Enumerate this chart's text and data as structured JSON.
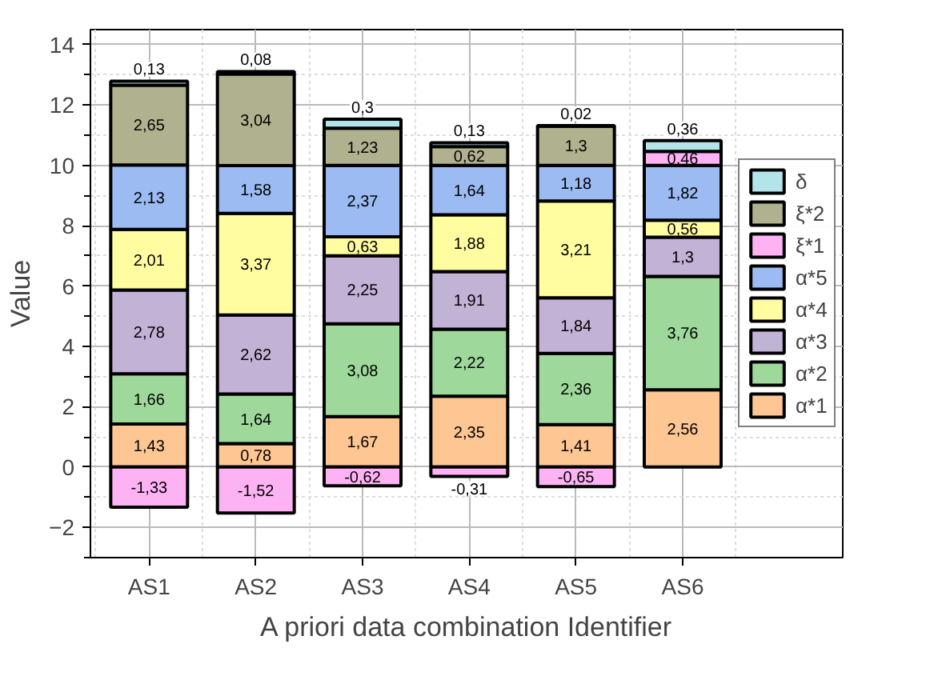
{
  "chart_data": {
    "type": "bar",
    "stacked": true,
    "xlabel": "A priori data combination Identifier",
    "ylabel": "Value",
    "categories": [
      "AS1",
      "AS2",
      "AS3",
      "AS4",
      "AS5",
      "AS6"
    ],
    "ylim": [
      -3,
      14.5
    ],
    "yticks": [
      -2,
      0,
      2,
      4,
      6,
      8,
      10,
      12,
      14
    ],
    "grid": true,
    "legend": "right",
    "series": [
      {
        "name": "α*1",
        "color": "#fdc693",
        "values": [
          1.43,
          0.78,
          1.67,
          2.35,
          1.41,
          2.56
        ],
        "value_labels": [
          "1,43",
          "0,78",
          "1,67",
          "2,35",
          "1,41",
          "2,56"
        ]
      },
      {
        "name": "α*2",
        "color": "#9fd89b",
        "values": [
          1.66,
          1.64,
          3.08,
          2.22,
          2.36,
          3.76
        ],
        "value_labels": [
          "1,66",
          "1,64",
          "3,08",
          "2,22",
          "2,36",
          "3,76"
        ]
      },
      {
        "name": "α*3",
        "color": "#c2b2d6",
        "values": [
          2.78,
          2.62,
          2.25,
          1.91,
          1.84,
          1.3
        ],
        "value_labels": [
          "2,78",
          "2,62",
          "2,25",
          "1,91",
          "1,84",
          "1,3"
        ]
      },
      {
        "name": "α*4",
        "color": "#fffd9f",
        "values": [
          2.01,
          3.37,
          0.63,
          1.88,
          3.21,
          0.56
        ],
        "value_labels": [
          "2,01",
          "3,37",
          "0,63",
          "1,88",
          "3,21",
          "0,56"
        ]
      },
      {
        "name": "α*5",
        "color": "#9bbbf2",
        "values": [
          2.13,
          1.58,
          2.37,
          1.64,
          1.18,
          1.82
        ],
        "value_labels": [
          "2,13",
          "1,58",
          "2,37",
          "1,64",
          "1,18",
          "1,82"
        ]
      },
      {
        "name": "ξ*1",
        "color": "#fdb2f4",
        "values": [
          -1.33,
          -1.52,
          -0.62,
          -0.31,
          -0.65,
          0.46
        ],
        "value_labels": [
          "-1,33",
          "-1,52",
          "-0,62",
          "-0,31",
          "-0,65",
          "0,46"
        ]
      },
      {
        "name": "ξ*2",
        "color": "#afb18f",
        "values": [
          2.65,
          3.04,
          1.23,
          0.62,
          1.3,
          null
        ],
        "value_labels": [
          "2,65",
          "3,04",
          "1,23",
          "0,62",
          "1,3",
          null
        ]
      },
      {
        "name": "δ",
        "color": "#b3e4ea",
        "values": [
          0.13,
          0.08,
          0.3,
          0.13,
          0.02,
          0.36
        ],
        "value_labels": [
          "0,13",
          "0,08",
          "0,3",
          "0,13",
          "0,02",
          "0,36"
        ]
      }
    ]
  }
}
